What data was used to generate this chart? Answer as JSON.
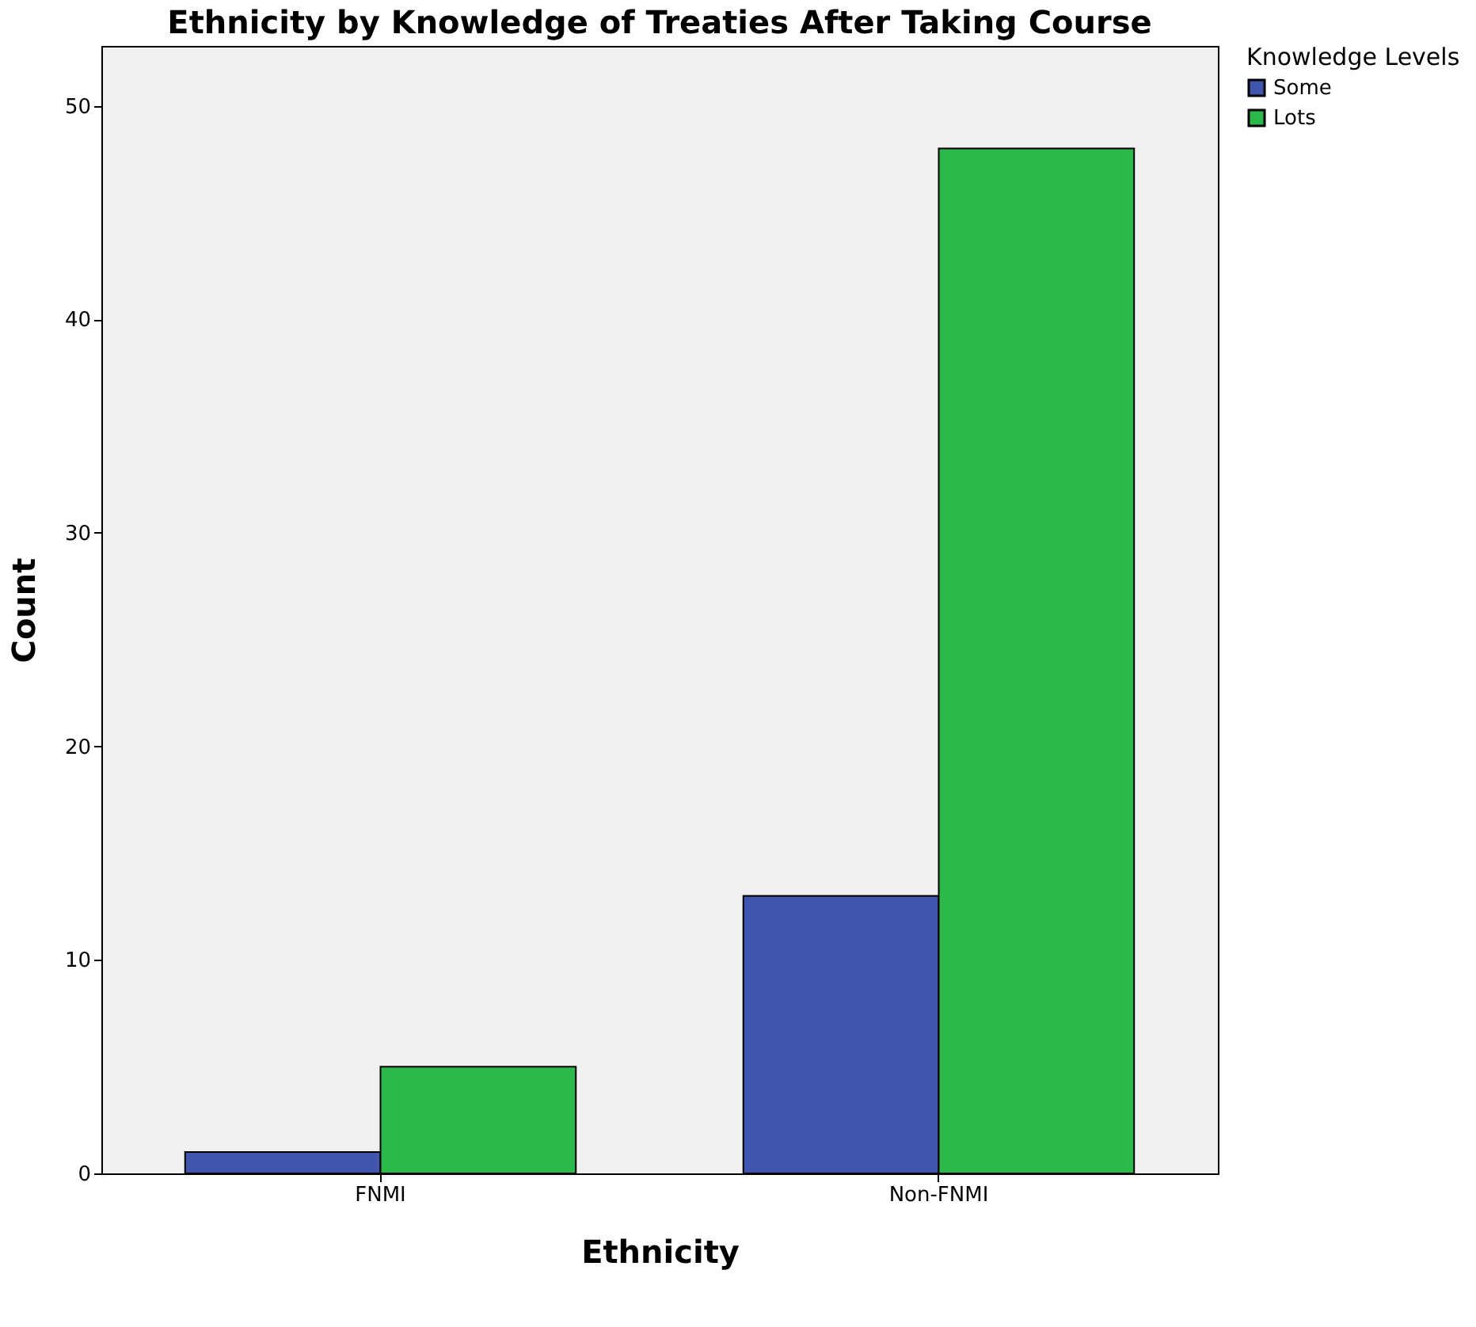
{
  "chart_data": {
    "type": "bar",
    "title": "Ethnicity by Knowledge of Treaties After Taking Course",
    "xlabel": "Ethnicity",
    "ylabel": "Count",
    "legend_title": "Knowledge Levels",
    "categories": [
      "FNMI",
      "Non-FNMI"
    ],
    "series": [
      {
        "name": "Some",
        "color": "#3f56ac",
        "values": [
          1,
          13
        ]
      },
      {
        "name": "Lots",
        "color": "#2db84b",
        "values": [
          5,
          48
        ]
      }
    ],
    "ylim": [
      0,
      52.8
    ],
    "yticks": [
      0,
      10,
      20,
      30,
      40,
      50
    ],
    "grid": false,
    "legend": "top right"
  }
}
